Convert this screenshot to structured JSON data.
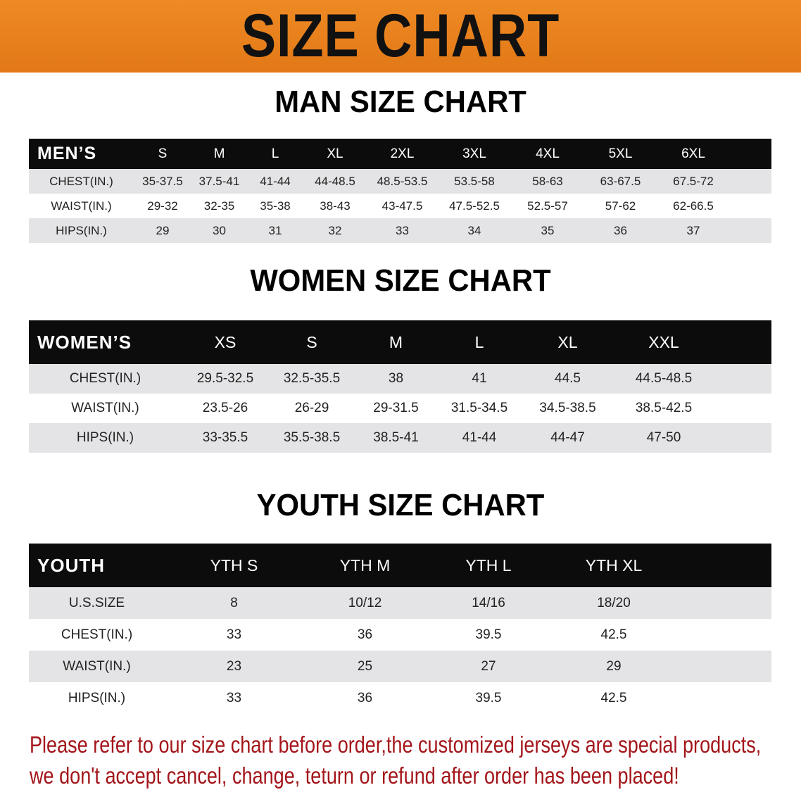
{
  "title": "SIZE CHART",
  "colors": {
    "banner": "#e8801c",
    "header_row": "#0c0c0c",
    "shaded_row": "#e4e4e6",
    "notice_text": "#a3151a"
  },
  "men": {
    "title": "MAN SIZE CHART",
    "header": [
      "MEN’S",
      "S",
      "M",
      "L",
      "XL",
      "2XL",
      "3XL",
      "4XL",
      "5XL",
      "6XL",
      ""
    ],
    "rows": [
      [
        "CHEST(IN.)",
        "35-37.5",
        "37.5-41",
        "41-44",
        "44-48.5",
        "48.5-53.5",
        "53.5-58",
        "58-63",
        "63-67.5",
        "67.5-72",
        ""
      ],
      [
        "WAIST(IN.)",
        "29-32",
        "32-35",
        "35-38",
        "38-43",
        "43-47.5",
        "47.5-52.5",
        "52.5-57",
        "57-62",
        "62-66.5",
        ""
      ],
      [
        "HIPS(IN.)",
        "29",
        "30",
        "31",
        "32",
        "33",
        "34",
        "35",
        "36",
        "37",
        ""
      ]
    ]
  },
  "women": {
    "title": "WOMEN SIZE CHART",
    "header": [
      "WOMEN’S",
      "XS",
      "S",
      "M",
      "L",
      "XL",
      "XXL",
      ""
    ],
    "rows": [
      [
        "CHEST(IN.)",
        "29.5-32.5",
        "32.5-35.5",
        "38",
        "41",
        "44.5",
        "44.5-48.5",
        ""
      ],
      [
        "WAIST(IN.)",
        "23.5-26",
        "26-29",
        "29-31.5",
        "31.5-34.5",
        "34.5-38.5",
        "38.5-42.5",
        ""
      ],
      [
        "HIPS(IN.)",
        "33-35.5",
        "35.5-38.5",
        "38.5-41",
        "41-44",
        "44-47",
        "47-50",
        ""
      ]
    ]
  },
  "youth": {
    "title": "YOUTH SIZE CHART",
    "header": [
      "YOUTH",
      "YTH S",
      "YTH M",
      "YTH L",
      "YTH XL",
      ""
    ],
    "rows": [
      [
        "U.S.SIZE",
        "8",
        "10/12",
        "14/16",
        "18/20",
        ""
      ],
      [
        "CHEST(IN.)",
        "33",
        "36",
        "39.5",
        "42.5",
        ""
      ],
      [
        "WAIST(IN.)",
        "23",
        "25",
        "27",
        "29",
        ""
      ],
      [
        "HIPS(IN.)",
        "33",
        "36",
        "39.5",
        "42.5",
        ""
      ]
    ]
  },
  "notice": {
    "line1": "Please refer to our size chart before order,the customized jerseys are special products,",
    "line2": "we don't accept cancel, change, teturn or refund after order has been placed!"
  }
}
